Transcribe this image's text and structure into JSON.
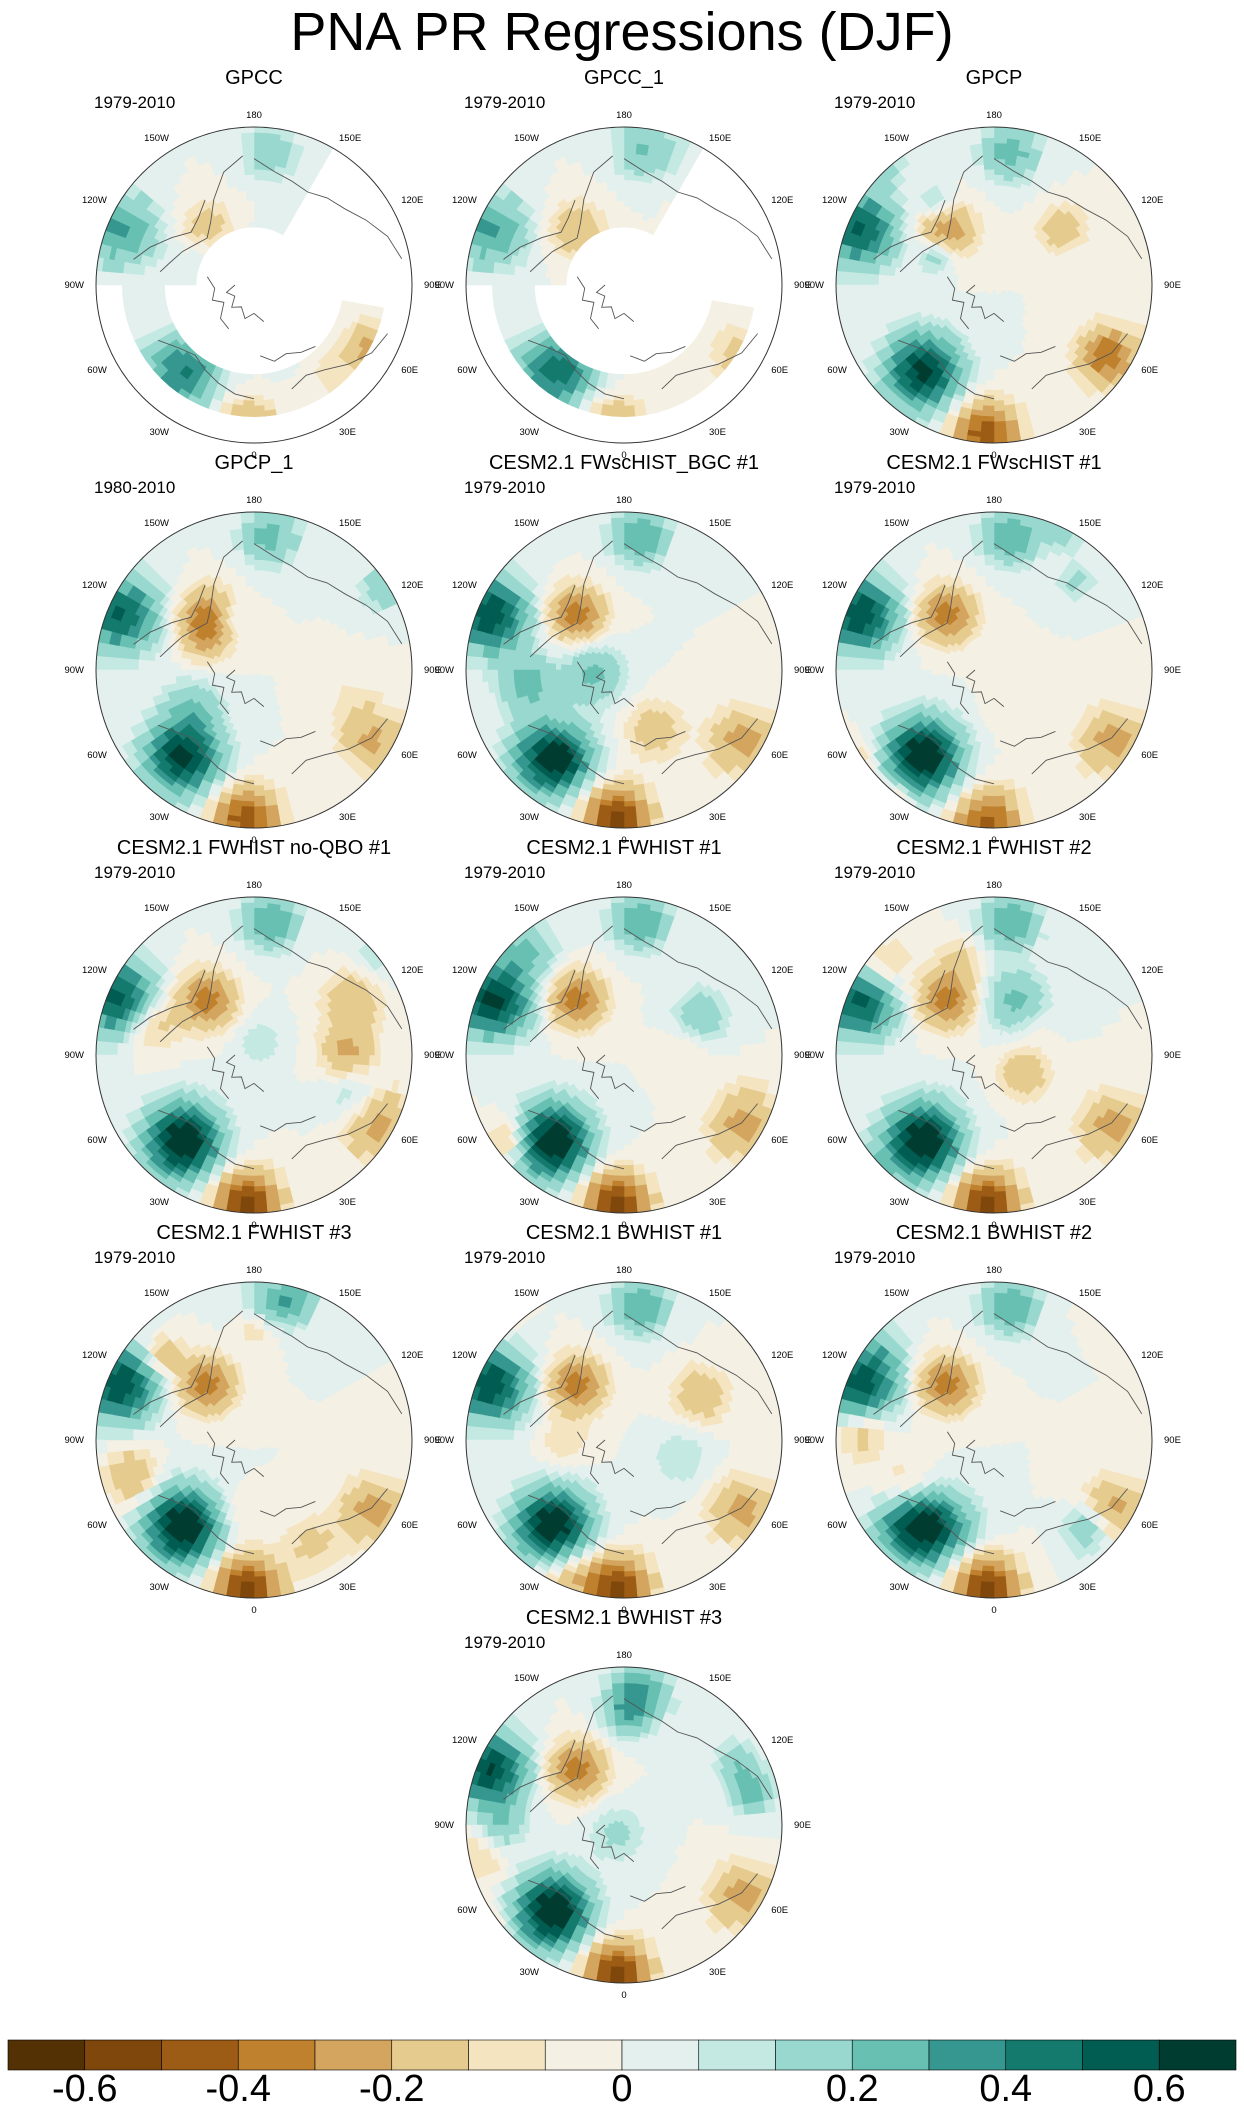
{
  "title": "PNA PR Regressions (DJF)",
  "longitude_labels": [
    "180",
    "150E",
    "120E",
    "90E",
    "60E",
    "30E",
    "0",
    "30W",
    "60W",
    "90W",
    "120W",
    "150W"
  ],
  "panels": [
    {
      "title": "GPCC",
      "period": "1979-2010",
      "style": "obs-gappy",
      "seed": 11
    },
    {
      "title": "GPCC_1",
      "period": "1979-2010",
      "style": "obs-gappy",
      "seed": 12
    },
    {
      "title": "GPCP",
      "period": "1979-2010",
      "style": "obs",
      "seed": 13
    },
    {
      "title": "GPCP_1",
      "period": "1980-2010",
      "style": "obs",
      "seed": 14
    },
    {
      "title": "CESM2.1 FWscHIST_BGC #1",
      "period": "1979-2010",
      "style": "model",
      "seed": 21
    },
    {
      "title": "CESM2.1 FWscHIST #1",
      "period": "1979-2010",
      "style": "model",
      "seed": 22
    },
    {
      "title": "CESM2.1 FWHIST no-QBO #1",
      "period": "1979-2010",
      "style": "model",
      "seed": 23
    },
    {
      "title": "CESM2.1 FWHIST #1",
      "period": "1979-2010",
      "style": "model",
      "seed": 24
    },
    {
      "title": "CESM2.1 FWHIST #2",
      "period": "1979-2010",
      "style": "model",
      "seed": 25
    },
    {
      "title": "CESM2.1 FWHIST #3",
      "period": "1979-2010",
      "style": "model",
      "seed": 26
    },
    {
      "title": "CESM2.1 BWHIST #1",
      "period": "1979-2010",
      "style": "model",
      "seed": 27
    },
    {
      "title": "CESM2.1 BWHIST #2",
      "period": "1979-2010",
      "style": "model",
      "seed": 28
    },
    {
      "title": "CESM2.1 BWHIST #3",
      "period": "1979-2010",
      "style": "model",
      "seed": 29
    }
  ],
  "colorbar": {
    "colors": [
      "#543005",
      "#7f470b",
      "#9d5c15",
      "#bf812d",
      "#d3a55e",
      "#e6cb8f",
      "#f4e4c0",
      "#f5f0e4",
      "#e3f0ee",
      "#c4e9e3",
      "#98d8cf",
      "#68c0b3",
      "#35978f",
      "#147a6e",
      "#015c52",
      "#003c30"
    ],
    "boundaries": [
      -0.7,
      -0.6,
      -0.5,
      -0.4,
      -0.3,
      -0.2,
      -0.1,
      -0.05,
      0,
      0.05,
      0.1,
      0.2,
      0.3,
      0.4,
      0.5,
      0.6,
      0.7
    ],
    "tick_labels": [
      {
        "text": "-0.6",
        "value": -0.6
      },
      {
        "text": "-0.4",
        "value": -0.4
      },
      {
        "text": "-0.2",
        "value": -0.2
      },
      {
        "text": "0",
        "value": 0
      },
      {
        "text": "0.2",
        "value": 0.2
      },
      {
        "text": "0.4",
        "value": 0.4
      },
      {
        "text": "0.6",
        "value": 0.6
      }
    ]
  }
}
